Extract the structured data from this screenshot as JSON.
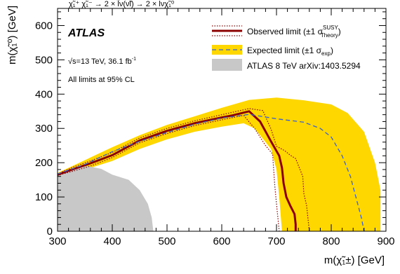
{
  "chart_data": {
    "type": "line",
    "title": "χ̃₁⁺ χ̃₁⁻ → 2 × l̃ν(ν̃l) → 2 × lνχ̃₁⁰",
    "xlabel": "m(χ̃₁±) [GeV]",
    "ylabel": "m(χ̃₁⁰) [GeV]",
    "xlim": [
      300,
      900
    ],
    "ylim": [
      0,
      650
    ],
    "x_ticks": [
      "300",
      "400",
      "500",
      "600",
      "700",
      "800",
      "900"
    ],
    "y_ticks": [
      "0",
      "100",
      "200",
      "300",
      "400",
      "500",
      "600"
    ],
    "grid": false,
    "legend_position": "top-right",
    "annotations": {
      "experiment": "ATLAS",
      "energy": "√s=13 TeV, 36.1 fb",
      "energy_sup": "-1",
      "cl": "All limits at 95% CL"
    },
    "legend": [
      {
        "key": "observed",
        "label": "Observed limit (±1 σ",
        "sup": "SUSY",
        "sub": "Theory",
        "tail": ")",
        "color": "#8b0000"
      },
      {
        "key": "expected",
        "label": "Expected limit (±1 σ",
        "sub": "exp",
        "tail": ")",
        "color": "#3a5fcd",
        "band_color": "#ffd700"
      },
      {
        "key": "atlas8",
        "label": "ATLAS 8 TeV arXiv:1403.5294",
        "color": "#c8c8c8"
      }
    ],
    "series": [
      {
        "name": "Observed limit",
        "style": "solid",
        "points": [
          [
            300,
            165
          ],
          [
            330,
            182
          ],
          [
            360,
            198
          ],
          [
            400,
            222
          ],
          [
            450,
            265
          ],
          [
            500,
            293
          ],
          [
            550,
            315
          ],
          [
            600,
            332
          ],
          [
            620,
            338
          ],
          [
            650,
            350
          ],
          [
            670,
            320
          ],
          [
            690,
            262
          ],
          [
            705,
            220
          ],
          [
            710,
            185
          ],
          [
            713,
            140
          ],
          [
            718,
            100
          ],
          [
            725,
            75
          ],
          [
            733,
            50
          ],
          [
            735,
            20
          ],
          [
            735,
            0
          ]
        ]
      },
      {
        "name": "Observed limit +1σ theory",
        "style": "dotted",
        "points": [
          [
            300,
            167
          ],
          [
            330,
            188
          ],
          [
            360,
            205
          ],
          [
            400,
            230
          ],
          [
            450,
            272
          ],
          [
            500,
            300
          ],
          [
            550,
            322
          ],
          [
            600,
            340
          ],
          [
            650,
            358
          ],
          [
            675,
            352
          ],
          [
            690,
            298
          ],
          [
            700,
            248
          ],
          [
            715,
            235
          ],
          [
            725,
            222
          ],
          [
            735,
            212
          ],
          [
            748,
            160
          ],
          [
            750,
            110
          ],
          [
            755,
            75
          ],
          [
            760,
            0
          ]
        ]
      },
      {
        "name": "Observed limit -1σ theory",
        "style": "dotted",
        "points": [
          [
            300,
            163
          ],
          [
            330,
            176
          ],
          [
            360,
            190
          ],
          [
            400,
            215
          ],
          [
            450,
            258
          ],
          [
            500,
            285
          ],
          [
            550,
            308
          ],
          [
            600,
            325
          ],
          [
            640,
            338
          ],
          [
            660,
            300
          ],
          [
            680,
            250
          ],
          [
            693,
            225
          ],
          [
            695,
            175
          ],
          [
            697,
            130
          ],
          [
            700,
            80
          ],
          [
            705,
            0
          ]
        ]
      },
      {
        "name": "Expected limit",
        "style": "dashed",
        "points": [
          [
            300,
            167
          ],
          [
            350,
            195
          ],
          [
            400,
            232
          ],
          [
            450,
            262
          ],
          [
            500,
            288
          ],
          [
            550,
            312
          ],
          [
            600,
            330
          ],
          [
            650,
            341
          ],
          [
            700,
            328
          ],
          [
            750,
            318
          ],
          [
            780,
            300
          ],
          [
            800,
            275
          ],
          [
            820,
            220
          ],
          [
            835,
            160
          ],
          [
            845,
            100
          ],
          [
            855,
            40
          ],
          [
            860,
            0
          ]
        ]
      }
    ],
    "expected_band": {
      "upper": [
        [
          300,
          170
        ],
        [
          340,
          200
        ],
        [
          400,
          245
        ],
        [
          450,
          280
        ],
        [
          500,
          310
        ],
        [
          550,
          335
        ],
        [
          600,
          360
        ],
        [
          650,
          383
        ],
        [
          700,
          390
        ],
        [
          750,
          382
        ],
        [
          800,
          370
        ],
        [
          830,
          345
        ],
        [
          860,
          290
        ],
        [
          880,
          200
        ],
        [
          890,
          120
        ],
        [
          890,
          0
        ]
      ],
      "lower": [
        [
          300,
          162
        ],
        [
          340,
          175
        ],
        [
          400,
          205
        ],
        [
          450,
          240
        ],
        [
          500,
          268
        ],
        [
          550,
          290
        ],
        [
          600,
          305
        ],
        [
          640,
          315
        ],
        [
          660,
          300
        ],
        [
          680,
          260
        ],
        [
          690,
          240
        ],
        [
          700,
          180
        ],
        [
          705,
          100
        ],
        [
          710,
          0
        ]
      ]
    },
    "atlas8_region": [
      [
        300,
        165
      ],
      [
        310,
        175
      ],
      [
        330,
        184
      ],
      [
        355,
        190
      ],
      [
        380,
        182
      ],
      [
        400,
        165
      ],
      [
        430,
        150
      ],
      [
        450,
        120
      ],
      [
        465,
        80
      ],
      [
        472,
        40
      ],
      [
        475,
        0
      ],
      [
        300,
        0
      ]
    ]
  }
}
